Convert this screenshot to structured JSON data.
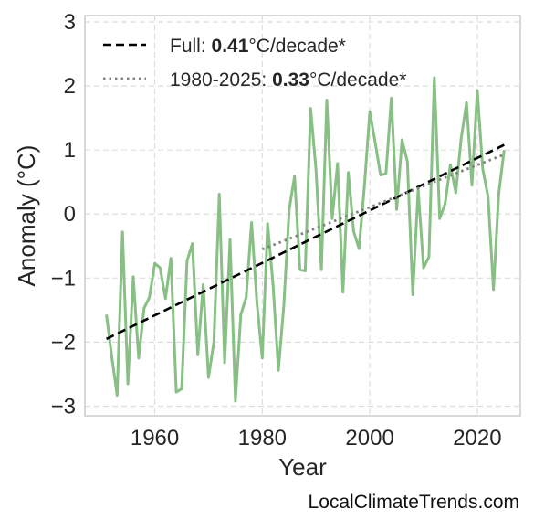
{
  "chart_data": {
    "type": "line",
    "xlabel": "Year",
    "ylabel": "Anomaly (°C)",
    "xlim": [
      1947,
      2028
    ],
    "ylim": [
      -3.15,
      3.1
    ],
    "xticks": [
      1960,
      1980,
      2000,
      2020
    ],
    "yticks": [
      -3,
      -2,
      -1,
      0,
      1,
      2,
      3
    ],
    "grid": true,
    "legend_position": "top-left",
    "series_color": "#88bf85",
    "series": [
      {
        "x": [
          1951,
          1952,
          1953,
          1954,
          1955,
          1956,
          1957,
          1958,
          1959,
          1960,
          1961,
          1962,
          1963,
          1964,
          1965,
          1966,
          1967,
          1968,
          1969,
          1970,
          1971,
          1972,
          1973,
          1974,
          1975,
          1976,
          1977,
          1978,
          1979,
          1980,
          1981,
          1982,
          1983,
          1984,
          1985,
          1986,
          1987,
          1988,
          1989,
          1990,
          1991,
          1992,
          1993,
          1994,
          1995,
          1996,
          1997,
          1998,
          1999,
          2000,
          2001,
          2002,
          2003,
          2004,
          2005,
          2006,
          2007,
          2008,
          2009,
          2010,
          2011,
          2012,
          2013,
          2014,
          2015,
          2016,
          2017,
          2018,
          2019,
          2020,
          2021,
          2022,
          2023,
          2024,
          2025
        ],
        "values": [
          -1.57,
          -2.22,
          -2.83,
          -0.28,
          -2.65,
          -0.98,
          -2.25,
          -1.47,
          -1.3,
          -0.77,
          -0.84,
          -1.32,
          -0.69,
          -2.78,
          -2.73,
          -0.73,
          -0.46,
          -2.2,
          -1.1,
          -2.55,
          -2.0,
          0.31,
          -2.32,
          -0.4,
          -2.92,
          -1.57,
          -1.3,
          -0.13,
          -1.37,
          -2.25,
          -0.15,
          -1.1,
          -2.44,
          -1.43,
          0.07,
          0.59,
          -0.87,
          -0.89,
          1.65,
          0.69,
          -0.87,
          1.78,
          -0.07,
          0.79,
          -1.22,
          0.65,
          -0.27,
          -0.54,
          0.43,
          1.6,
          1.12,
          0.61,
          0.63,
          1.81,
          0.07,
          1.16,
          0.82,
          -1.26,
          0.39,
          -0.84,
          -0.67,
          2.13,
          -0.07,
          0.16,
          0.77,
          0.33,
          1.18,
          1.74,
          0.45,
          1.93,
          0.71,
          0.27,
          -1.18,
          0.32,
          1.0
        ]
      }
    ],
    "trends": [
      {
        "label_prefix": "Full: ",
        "rate": "0.41",
        "label_suffix": "°C/decade*",
        "x": [
          1951,
          2025
        ],
        "y": [
          -1.95,
          1.08
        ],
        "style": "dashed",
        "color": "#000000"
      },
      {
        "label_prefix": "1980-2025: ",
        "rate": "0.33",
        "label_suffix": "°C/decade*",
        "x": [
          1980,
          2025
        ],
        "y": [
          -0.55,
          0.93
        ],
        "style": "dotted",
        "color": "#808080"
      }
    ]
  },
  "watermark": "LocalClimateTrends.com"
}
